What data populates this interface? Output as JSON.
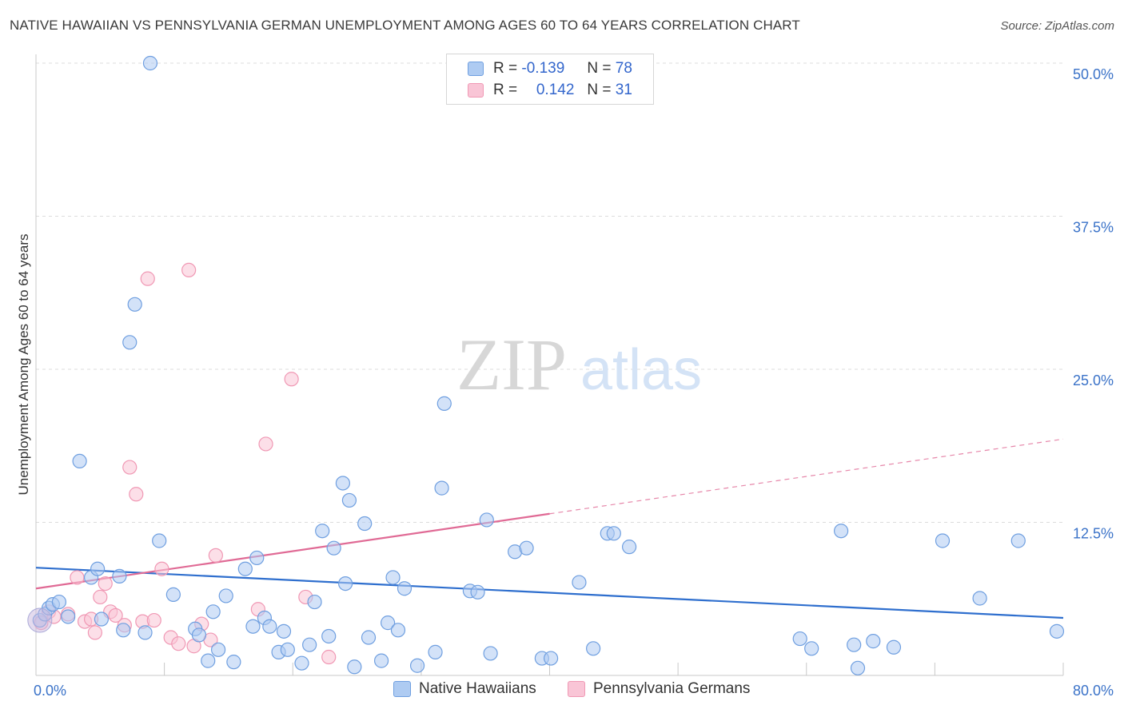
{
  "chart_data": {
    "type": "scatter",
    "title": "NATIVE HAWAIIAN VS PENNSYLVANIA GERMAN UNEMPLOYMENT AMONG AGES 60 TO 64 YEARS CORRELATION CHART",
    "source": "Source: ZipAtlas.com",
    "watermark": {
      "zip": "ZIP",
      "atlas": "atlas"
    },
    "ylabel": "Unemployment Among Ages 60 to 64 years",
    "xlim": [
      0,
      80
    ],
    "ylim": [
      0,
      50
    ],
    "x_tick_labels": [
      {
        "value": 0,
        "label": "0.0%"
      },
      {
        "value": 80,
        "label": "80.0%"
      }
    ],
    "y_tick_labels": [
      {
        "value": 12.5,
        "label": "12.5%"
      },
      {
        "value": 25.0,
        "label": "25.0%"
      },
      {
        "value": 37.5,
        "label": "37.5%"
      },
      {
        "value": 50.0,
        "label": "50.0%"
      }
    ],
    "legend": {
      "rows": [
        {
          "r_label": "R =",
          "r_value": "-0.139",
          "n_label": "N =",
          "n_value": "78"
        },
        {
          "r_label": "R =",
          "r_value": "0.142",
          "n_label": "N =",
          "n_value": "31"
        }
      ]
    },
    "series": [
      {
        "name": "Native Hawaiians",
        "color": "#6f9fe0",
        "fill": "#aecbf2",
        "line_color": "#2f6fce",
        "trend": {
          "x0": 0,
          "y0": 8.8,
          "x1": 80,
          "y1": 4.7,
          "dashed_from": null
        },
        "points": [
          [
            0.3,
            4.5
          ],
          [
            0.7,
            5.0
          ],
          [
            1.0,
            5.5
          ],
          [
            1.3,
            5.8
          ],
          [
            1.8,
            6.0
          ],
          [
            2.5,
            4.8
          ],
          [
            3.4,
            17.5
          ],
          [
            4.3,
            8.0
          ],
          [
            4.8,
            8.7
          ],
          [
            5.1,
            4.6
          ],
          [
            6.5,
            8.1
          ],
          [
            6.8,
            3.7
          ],
          [
            7.3,
            27.2
          ],
          [
            7.7,
            30.3
          ],
          [
            8.5,
            3.5
          ],
          [
            8.9,
            50.0
          ],
          [
            9.6,
            11.0
          ],
          [
            10.7,
            6.6
          ],
          [
            12.4,
            3.8
          ],
          [
            12.7,
            3.3
          ],
          [
            13.4,
            1.2
          ],
          [
            13.8,
            5.2
          ],
          [
            14.2,
            2.1
          ],
          [
            14.8,
            6.5
          ],
          [
            15.4,
            1.1
          ],
          [
            16.3,
            8.7
          ],
          [
            16.9,
            4.0
          ],
          [
            17.2,
            9.6
          ],
          [
            17.8,
            4.7
          ],
          [
            18.2,
            4.0
          ],
          [
            18.9,
            1.9
          ],
          [
            19.3,
            3.6
          ],
          [
            19.6,
            2.1
          ],
          [
            20.7,
            1.0
          ],
          [
            21.3,
            2.5
          ],
          [
            21.7,
            6.0
          ],
          [
            22.3,
            11.8
          ],
          [
            22.8,
            3.2
          ],
          [
            23.2,
            10.4
          ],
          [
            23.9,
            15.7
          ],
          [
            24.1,
            7.5
          ],
          [
            24.4,
            14.3
          ],
          [
            24.8,
            0.7
          ],
          [
            25.6,
            12.4
          ],
          [
            25.9,
            3.1
          ],
          [
            26.9,
            1.2
          ],
          [
            27.4,
            4.3
          ],
          [
            27.8,
            8.0
          ],
          [
            28.2,
            3.7
          ],
          [
            28.7,
            7.1
          ],
          [
            29.7,
            0.8
          ],
          [
            31.1,
            1.9
          ],
          [
            31.6,
            15.3
          ],
          [
            31.8,
            22.2
          ],
          [
            33.8,
            6.9
          ],
          [
            34.4,
            6.8
          ],
          [
            35.1,
            12.7
          ],
          [
            35.4,
            1.8
          ],
          [
            37.3,
            10.1
          ],
          [
            38.2,
            10.4
          ],
          [
            39.4,
            1.4
          ],
          [
            40.1,
            1.4
          ],
          [
            42.3,
            7.6
          ],
          [
            43.4,
            2.2
          ],
          [
            44.5,
            11.6
          ],
          [
            45.0,
            11.6
          ],
          [
            46.2,
            10.5
          ],
          [
            59.5,
            3.0
          ],
          [
            60.4,
            2.2
          ],
          [
            62.7,
            11.8
          ],
          [
            63.7,
            2.5
          ],
          [
            64.0,
            0.6
          ],
          [
            65.2,
            2.8
          ],
          [
            66.8,
            2.3
          ],
          [
            70.6,
            11.0
          ],
          [
            76.5,
            11.0
          ],
          [
            73.5,
            6.3
          ],
          [
            79.5,
            3.6
          ]
        ]
      },
      {
        "name": "Pennsylvania Germans",
        "color": "#f098b4",
        "fill": "#f9c5d6",
        "line_color": "#e06a95",
        "trend": {
          "x0": 0,
          "y0": 7.1,
          "x1": 80,
          "y1": 19.3,
          "dashed_from": 40
        },
        "points": [
          [
            0.4,
            4.3
          ],
          [
            1.0,
            5.2
          ],
          [
            1.4,
            4.8
          ],
          [
            2.5,
            5.0
          ],
          [
            3.2,
            8.0
          ],
          [
            3.8,
            4.4
          ],
          [
            4.3,
            4.6
          ],
          [
            4.6,
            3.5
          ],
          [
            5.0,
            6.4
          ],
          [
            5.4,
            7.5
          ],
          [
            5.8,
            5.2
          ],
          [
            6.2,
            4.9
          ],
          [
            6.9,
            4.1
          ],
          [
            7.3,
            17.0
          ],
          [
            7.8,
            14.8
          ],
          [
            8.3,
            4.4
          ],
          [
            8.7,
            32.4
          ],
          [
            9.2,
            4.5
          ],
          [
            9.8,
            8.7
          ],
          [
            10.5,
            3.1
          ],
          [
            11.1,
            2.6
          ],
          [
            11.9,
            33.1
          ],
          [
            12.3,
            2.4
          ],
          [
            12.9,
            4.2
          ],
          [
            13.6,
            2.9
          ],
          [
            14.0,
            9.8
          ],
          [
            17.3,
            5.4
          ],
          [
            17.9,
            18.9
          ],
          [
            19.9,
            24.2
          ],
          [
            21.0,
            6.4
          ],
          [
            22.8,
            1.5
          ]
        ]
      }
    ]
  },
  "bottom_legend": [
    "Native Hawaiians",
    "Pennsylvania Germans"
  ]
}
